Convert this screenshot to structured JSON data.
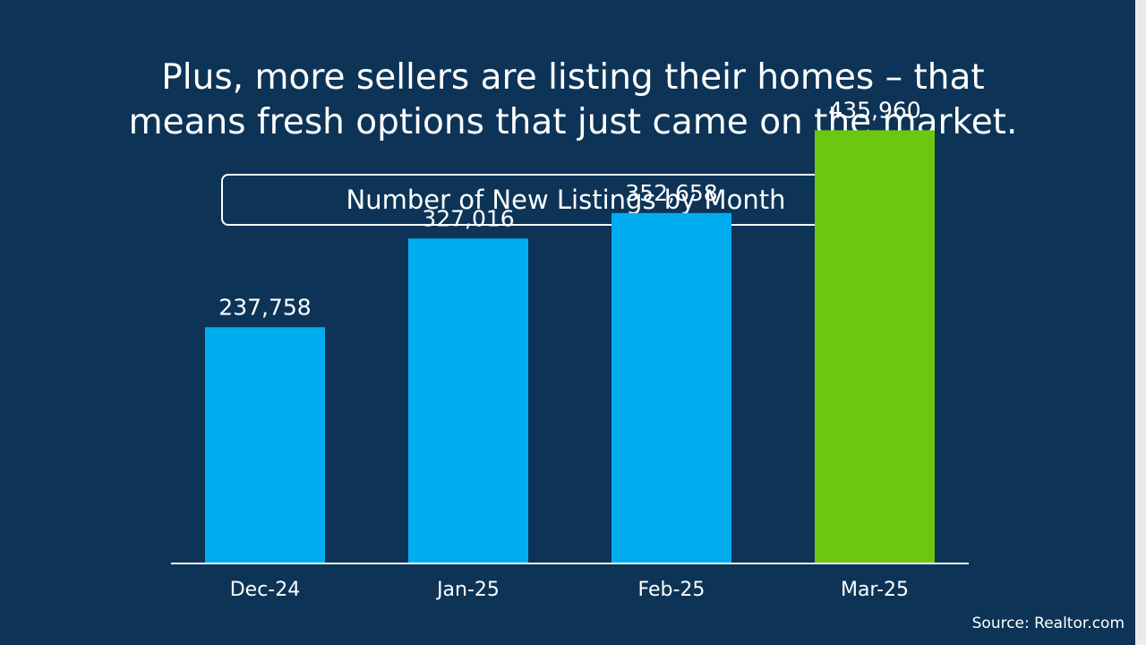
{
  "headline": {
    "line1": "Plus, more sellers are listing their homes – that",
    "line2": "means fresh options that just came on the market."
  },
  "source": "Source: Realtor.com",
  "colors": {
    "background": "#0d3457",
    "bar_default": "#00aeef",
    "bar_highlight": "#6cc70f",
    "text": "#ffffff"
  },
  "chart_data": {
    "type": "bar",
    "title": "Number of New Listings by Month",
    "categories": [
      "Dec-24",
      "Jan-25",
      "Feb-25",
      "Mar-25"
    ],
    "values": [
      237758,
      327016,
      352658,
      435960
    ],
    "value_labels": [
      "237,758",
      "327,016",
      "352,658",
      "435,960"
    ],
    "highlight_index": 3,
    "xlabel": "",
    "ylabel": "",
    "ylim": [
      0,
      540000
    ],
    "grid": false,
    "legend": "none"
  }
}
